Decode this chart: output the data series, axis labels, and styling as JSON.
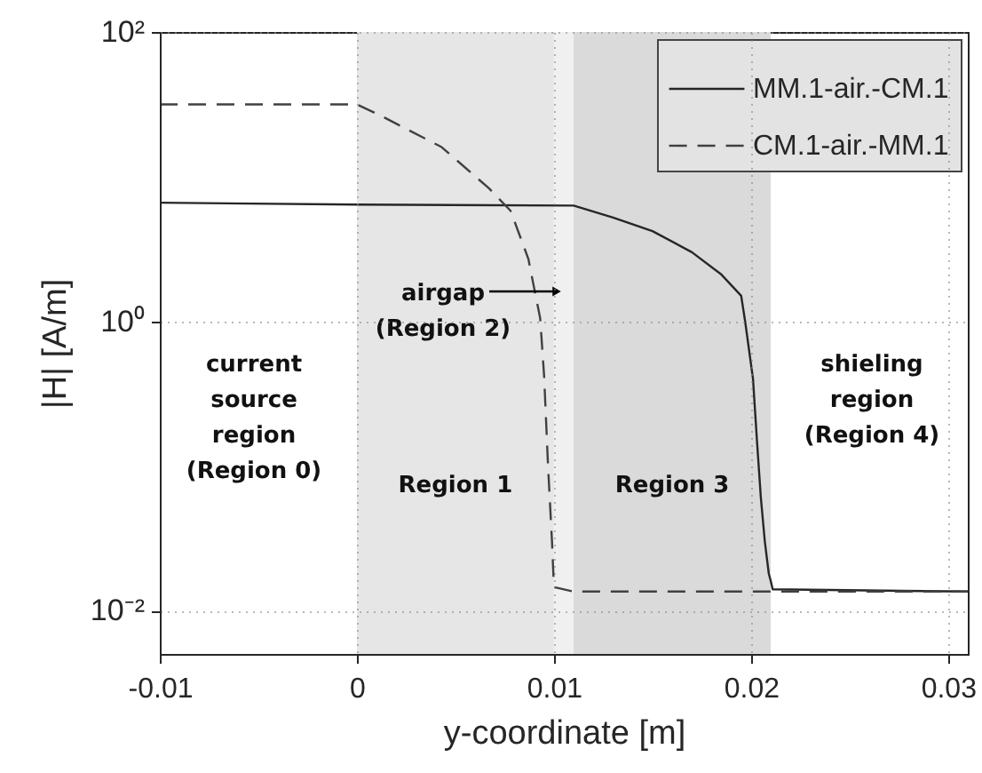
{
  "chart_data": {
    "type": "line",
    "xlabel": "y-coordinate [m]",
    "ylabel": "|H| [A/m]",
    "log": "y",
    "xlim": [
      -0.01,
      0.031
    ],
    "xticks": [
      -0.01,
      0,
      0.01,
      0.02,
      0.03
    ],
    "ylim": [
      0.005,
      100
    ],
    "yticks": [
      {
        "value": 0.01,
        "label": "10⁻²"
      },
      {
        "value": 1,
        "label": "10⁰"
      },
      {
        "value": 100,
        "label": "10²"
      }
    ],
    "grid": true,
    "legend": "top right",
    "series": [
      {
        "name": "MM.1-air.-CM.1",
        "color": "#262626",
        "line_style": "solid",
        "x": [
          -0.01,
          0,
          0.011,
          0.013,
          0.015,
          0.017,
          0.0185,
          0.0195,
          0.0197,
          0.0201,
          0.0203,
          0.0205,
          0.0207,
          0.0209,
          0.021,
          0.0211,
          0.031
        ],
        "values": [
          6.6,
          6.4,
          6.3,
          5.2,
          4.2,
          3.0,
          2.1,
          1.5,
          1.0,
          0.4,
          0.15,
          0.06,
          0.03,
          0.018,
          0.016,
          0.014,
          0.0135
        ]
      },
      {
        "name": "CM.1-air.-MM.1",
        "color": "#404040",
        "line_style": "dashed",
        "x": [
          -0.01,
          0,
          0.0013,
          0.0043,
          0.0067,
          0.0078,
          0.0087,
          0.0093,
          0.0095,
          0.0097,
          0.0099,
          0.01,
          0.011,
          0.031
        ],
        "values": [
          31.6,
          31.6,
          26,
          16,
          8.3,
          5.8,
          2.7,
          1.05,
          0.42,
          0.1,
          0.03,
          0.0145,
          0.0135,
          0.0135
        ]
      }
    ],
    "bands": [
      {
        "axis": "x",
        "from": 0,
        "to": 0.01,
        "color": "#e6e6e6",
        "label": "Region 1"
      },
      {
        "axis": "x",
        "from": 0.01,
        "to": 0.011,
        "color": "#f0f0f0",
        "label": "airgap\n(Region 2)"
      },
      {
        "axis": "x",
        "from": 0.011,
        "to": 0.021,
        "color": "#dadada",
        "label": "Region 3"
      }
    ],
    "annotations": [
      "current\nsource\nregion\n(Region 0)",
      "shieling\nregion\n(Region 4)"
    ]
  }
}
